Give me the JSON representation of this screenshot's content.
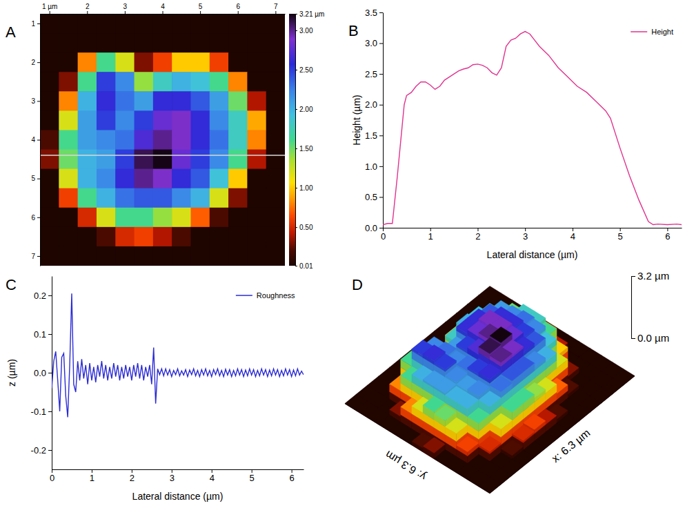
{
  "chart_data": [
    {
      "panel": "A",
      "type": "heatmap",
      "x": [
        1,
        1.5,
        2,
        2.5,
        3,
        3.5,
        4,
        4.5,
        5,
        5.5,
        6,
        6.5,
        7
      ],
      "y": [
        1,
        1.5,
        2,
        2.5,
        3,
        3.5,
        4,
        4.5,
        5,
        5.5,
        6,
        6.5,
        7
      ],
      "z": [
        [
          0.02,
          0.02,
          0.02,
          0.02,
          0.02,
          0.02,
          0.02,
          0.02,
          0.02,
          0.02,
          0.02,
          0.02,
          0.02
        ],
        [
          0.02,
          0.02,
          0.02,
          0.02,
          0.02,
          0.02,
          0.02,
          0.02,
          0.02,
          0.02,
          0.02,
          0.02,
          0.02
        ],
        [
          0.02,
          0.02,
          0.8,
          1.6,
          1.2,
          0.3,
          0.6,
          1.0,
          1.0,
          0.6,
          0.02,
          0.02,
          0.02
        ],
        [
          0.02,
          0.3,
          1.6,
          2.5,
          2.2,
          1.4,
          1.8,
          2.0,
          1.9,
          1.6,
          0.8,
          0.02,
          0.02
        ],
        [
          0.02,
          0.8,
          2.0,
          2.6,
          2.3,
          2.1,
          2.6,
          2.6,
          2.4,
          2.1,
          1.5,
          0.4,
          0.02
        ],
        [
          0.02,
          1.2,
          2.1,
          2.5,
          2.2,
          2.5,
          2.8,
          2.9,
          2.6,
          2.2,
          1.8,
          0.9,
          0.02
        ],
        [
          0.2,
          1.6,
          2.1,
          2.2,
          2.3,
          2.7,
          3.0,
          2.9,
          2.6,
          2.3,
          1.8,
          0.8,
          0.02
        ],
        [
          0.3,
          1.5,
          2.0,
          2.1,
          2.5,
          3.1,
          3.2,
          2.8,
          2.5,
          2.2,
          1.6,
          0.4,
          0.02
        ],
        [
          0.02,
          1.2,
          2.0,
          2.2,
          2.6,
          3.0,
          2.9,
          2.6,
          2.4,
          1.9,
          1.0,
          0.02,
          0.02
        ],
        [
          0.02,
          0.6,
          1.6,
          2.0,
          2.3,
          2.4,
          2.4,
          2.2,
          2.0,
          1.2,
          0.3,
          0.02,
          0.02
        ],
        [
          0.02,
          0.02,
          0.5,
          1.2,
          1.6,
          1.6,
          1.4,
          1.2,
          0.7,
          0.2,
          0.02,
          0.02,
          0.02
        ],
        [
          0.02,
          0.02,
          0.02,
          0.2,
          0.5,
          0.6,
          0.4,
          0.2,
          0.02,
          0.02,
          0.02,
          0.02,
          0.02
        ],
        [
          0.02,
          0.02,
          0.02,
          0.02,
          0.02,
          0.02,
          0.02,
          0.02,
          0.02,
          0.02,
          0.02,
          0.02,
          0.02
        ]
      ],
      "xlim": [
        0.75,
        7.25
      ],
      "ylim": [
        0.75,
        7.25
      ],
      "xticks": [
        {
          "value": 1,
          "label": "1 µm"
        },
        2,
        3,
        4,
        5,
        6,
        7
      ],
      "yticks": [
        1,
        2,
        3,
        4,
        5,
        6,
        7
      ],
      "colorbar_lim": [
        0.01,
        3.21
      ],
      "colorbar_ticks": [
        {
          "value": 0.01,
          "label": "0.01"
        },
        {
          "value": 0.5,
          "label": "0.50"
        },
        {
          "value": 1,
          "label": "1.00"
        },
        {
          "value": 1.5,
          "label": "1.50"
        },
        {
          "value": 2,
          "label": "2.00"
        },
        {
          "value": 2.5,
          "label": "2.50"
        },
        {
          "value": 3,
          "label": "3.00"
        },
        {
          "value": 3.21,
          "label": "3.21 µm"
        }
      ],
      "profile_y": 4.4
    },
    {
      "panel": "B",
      "type": "line",
      "x": [
        0,
        0.1,
        0.2,
        0.3,
        0.45,
        0.5,
        0.6,
        0.7,
        0.8,
        0.9,
        1.0,
        1.1,
        1.2,
        1.3,
        1.4,
        1.5,
        1.6,
        1.7,
        1.8,
        1.9,
        2.0,
        2.1,
        2.2,
        2.3,
        2.4,
        2.5,
        2.6,
        2.7,
        2.8,
        2.9,
        3.0,
        3.1,
        3.2,
        3.3,
        3.5,
        3.7,
        3.9,
        4.1,
        4.3,
        4.5,
        4.7,
        4.8,
        5.0,
        5.2,
        5.4,
        5.6,
        5.7,
        5.8,
        6.0,
        6.2,
        6.3
      ],
      "series": [
        {
          "name": "Height",
          "color": "#e0338f",
          "values": [
            0.05,
            0.07,
            0.07,
            0.8,
            2.0,
            2.15,
            2.2,
            2.3,
            2.37,
            2.37,
            2.32,
            2.25,
            2.3,
            2.4,
            2.45,
            2.5,
            2.55,
            2.58,
            2.6,
            2.65,
            2.66,
            2.64,
            2.6,
            2.52,
            2.48,
            2.6,
            2.95,
            3.05,
            3.08,
            3.15,
            3.19,
            3.15,
            3.05,
            2.95,
            2.8,
            2.6,
            2.45,
            2.3,
            2.2,
            2.05,
            1.9,
            1.78,
            1.3,
            0.85,
            0.45,
            0.1,
            0.05,
            0.06,
            0.05,
            0.06,
            0.05
          ]
        }
      ],
      "xlim": [
        0,
        6.3
      ],
      "ylim": [
        0,
        3.5
      ],
      "xticks": [
        0,
        1,
        2,
        3,
        4,
        5,
        6
      ],
      "yticks": [
        {
          "value": 0,
          "label": "0.0"
        },
        0.5,
        {
          "value": 1,
          "label": "1.0"
        },
        1.5,
        {
          "value": 2,
          "label": "2.0"
        },
        2.5,
        {
          "value": 3,
          "label": "3.0"
        },
        3.5
      ],
      "x_label": "Lateral distance (µm)",
      "y_label": "Height (µm)",
      "legend": "top-right"
    },
    {
      "panel": "C",
      "type": "line",
      "x": [
        0,
        0.05,
        0.1,
        0.15,
        0.2,
        0.25,
        0.3,
        0.35,
        0.4,
        0.45,
        0.5,
        0.55,
        0.6,
        0.65,
        0.7,
        0.75,
        0.8,
        0.85,
        0.9,
        0.95,
        1,
        1.05,
        1.1,
        1.15,
        1.2,
        1.25,
        1.3,
        1.35,
        1.4,
        1.45,
        1.5,
        1.55,
        1.6,
        1.65,
        1.7,
        1.75,
        1.8,
        1.85,
        1.9,
        1.95,
        2,
        2.05,
        2.1,
        2.15,
        2.2,
        2.25,
        2.3,
        2.35,
        2.4,
        2.45,
        2.5,
        2.55,
        2.6,
        2.65,
        2.7,
        2.75,
        2.8,
        2.85,
        2.9,
        2.95,
        3,
        3.05,
        3.1,
        3.15,
        3.2,
        3.25,
        3.3,
        3.35,
        3.4,
        3.45,
        3.5,
        3.55,
        3.6,
        3.65,
        3.7,
        3.75,
        3.8,
        3.85,
        3.9,
        3.95,
        4,
        4.05,
        4.1,
        4.15,
        4.2,
        4.25,
        4.3,
        4.35,
        4.4,
        4.45,
        4.5,
        4.55,
        4.6,
        4.65,
        4.7,
        4.75,
        4.8,
        4.85,
        4.9,
        4.95,
        5,
        5.05,
        5.1,
        5.15,
        5.2,
        5.25,
        5.3,
        5.35,
        5.4,
        5.45,
        5.5,
        5.55,
        5.6,
        5.65,
        5.7,
        5.75,
        5.8,
        5.85,
        5.9,
        5.95,
        6,
        6.05,
        6.1,
        6.15,
        6.2,
        6.25,
        6.3
      ],
      "series": [
        {
          "name": "Roughness",
          "color": "#2b2bd6",
          "values": [
            -0.04,
            0.03,
            0.055,
            -0.02,
            -0.1,
            0.04,
            0.05,
            -0.06,
            -0.115,
            0.02,
            0.205,
            -0.03,
            -0.05,
            0.03,
            -0.02,
            0.035,
            -0.015,
            0.02,
            -0.03,
            0.025,
            -0.02,
            0.015,
            -0.025,
            0.02,
            -0.01,
            0.03,
            -0.015,
            0.02,
            -0.02,
            0.015,
            -0.015,
            0.025,
            -0.01,
            0.02,
            -0.02,
            0.015,
            -0.015,
            0.02,
            -0.01,
            0.015,
            -0.02,
            0.02,
            -0.01,
            0.025,
            -0.015,
            0.02,
            -0.02,
            0.015,
            -0.01,
            0.02,
            -0.03,
            0.065,
            -0.08,
            0.01,
            -0.005,
            0.01,
            -0.008,
            0.01,
            -0.006,
            0.008,
            -0.01,
            0.006,
            -0.005,
            0.01,
            -0.008,
            0.005,
            -0.006,
            0.008,
            -0.01,
            0.007,
            -0.005,
            0.01,
            -0.008,
            0.006,
            -0.01,
            0.008,
            -0.006,
            0.01,
            -0.008,
            0.006,
            -0.01,
            0.008,
            -0.005,
            0.01,
            -0.008,
            0.006,
            -0.01,
            0.009,
            -0.006,
            0.008,
            -0.01,
            0.006,
            -0.008,
            0.01,
            -0.006,
            0.008,
            -0.01,
            0.007,
            -0.008,
            0.01,
            -0.006,
            0.008,
            -0.01,
            0.006,
            -0.008,
            0.01,
            -0.006,
            0.008,
            -0.01,
            0.007,
            -0.008,
            0.01,
            -0.006,
            0.008,
            -0.01,
            0.006,
            -0.008,
            0.01,
            -0.006,
            0.008,
            -0.01,
            0.007,
            -0.008,
            0.01,
            -0.006,
            0.004,
            -0.005
          ]
        }
      ],
      "xlim": [
        0,
        6.3
      ],
      "ylim": [
        -0.25,
        0.25
      ],
      "xticks": [
        0,
        1,
        2,
        3,
        4,
        5,
        6
      ],
      "yticks": [
        -0.2,
        -0.1,
        {
          "value": 0,
          "label": "0.0"
        },
        0.1,
        0.2
      ],
      "x_label": "Lateral distance (µm)",
      "y_label": "z (µm)",
      "legend": "top-right"
    },
    {
      "panel": "D",
      "type": "surface3d",
      "x": [
        1,
        1.5,
        2,
        2.5,
        3,
        3.5,
        4,
        4.5,
        5,
        5.5,
        6,
        6.5,
        7
      ],
      "y": [
        1,
        1.5,
        2,
        2.5,
        3,
        3.5,
        4,
        4.5,
        5,
        5.5,
        6,
        6.5,
        7
      ],
      "z": [
        [
          0.02,
          0.02,
          0.02,
          0.02,
          0.02,
          0.02,
          0.02,
          0.02,
          0.02,
          0.02,
          0.02,
          0.02,
          0.02
        ],
        [
          0.02,
          0.02,
          0.02,
          0.02,
          0.02,
          0.02,
          0.02,
          0.02,
          0.02,
          0.02,
          0.02,
          0.02,
          0.02
        ],
        [
          0.02,
          0.02,
          0.8,
          1.6,
          1.2,
          0.3,
          0.6,
          1.0,
          1.0,
          0.6,
          0.02,
          0.02,
          0.02
        ],
        [
          0.02,
          0.3,
          1.6,
          2.5,
          2.2,
          1.4,
          1.8,
          2.0,
          1.9,
          1.6,
          0.8,
          0.02,
          0.02
        ],
        [
          0.02,
          0.8,
          2.0,
          2.6,
          2.3,
          2.1,
          2.6,
          2.6,
          2.4,
          2.1,
          1.5,
          0.4,
          0.02
        ],
        [
          0.02,
          1.2,
          2.1,
          2.5,
          2.2,
          2.5,
          2.8,
          2.9,
          2.6,
          2.2,
          1.8,
          0.9,
          0.02
        ],
        [
          0.2,
          1.6,
          2.1,
          2.2,
          2.3,
          2.7,
          3.0,
          2.9,
          2.6,
          2.3,
          1.8,
          0.8,
          0.02
        ],
        [
          0.3,
          1.5,
          2.0,
          2.1,
          2.5,
          3.1,
          3.2,
          2.8,
          2.5,
          2.2,
          1.6,
          0.4,
          0.02
        ],
        [
          0.02,
          1.2,
          2.0,
          2.2,
          2.6,
          3.0,
          2.9,
          2.6,
          2.4,
          1.9,
          1.0,
          0.02,
          0.02
        ],
        [
          0.02,
          0.6,
          1.6,
          2.0,
          2.3,
          2.4,
          2.4,
          2.2,
          2.0,
          1.2,
          0.3,
          0.02,
          0.02
        ],
        [
          0.02,
          0.02,
          0.5,
          1.2,
          1.6,
          1.6,
          1.4,
          1.2,
          0.7,
          0.2,
          0.02,
          0.02,
          0.02
        ],
        [
          0.02,
          0.02,
          0.02,
          0.2,
          0.5,
          0.6,
          0.4,
          0.2,
          0.02,
          0.02,
          0.02,
          0.02,
          0.02
        ],
        [
          0.02,
          0.02,
          0.02,
          0.02,
          0.02,
          0.02,
          0.02,
          0.02,
          0.02,
          0.02,
          0.02,
          0.02,
          0.02
        ]
      ],
      "xlim": [
        0.75,
        7.25
      ],
      "ylim": [
        0.75,
        7.25
      ],
      "zlim": [
        0,
        3.2
      ],
      "zticks": [
        {
          "value": 0,
          "label": "0.0 µm"
        },
        {
          "value": 3.2,
          "label": "3.2 µm"
        }
      ],
      "x_label": "x: 6.3 µm",
      "y_label": "y: 6.3 µm"
    }
  ]
}
